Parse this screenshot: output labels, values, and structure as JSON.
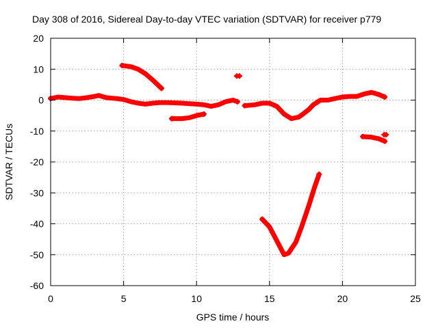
{
  "chart_data": {
    "type": "scatter",
    "title": "Day 308 of 2016, Sidereal Day-to-day VTEC variation (SDTVAR) for receiver p779",
    "xlabel": "GPS time / hours",
    "ylabel": "SDTVAR / TECUs",
    "xlim": [
      0,
      25
    ],
    "ylim": [
      -60,
      20
    ],
    "xticks": [
      0,
      5,
      10,
      15,
      20,
      25
    ],
    "yticks": [
      -60,
      -50,
      -40,
      -30,
      -20,
      -10,
      0,
      10,
      20
    ],
    "grid": true,
    "color": "#ff0000",
    "series": [
      {
        "name": "main-band",
        "points": [
          [
            0,
            0.5
          ],
          [
            0.5,
            1
          ],
          [
            1,
            0.8
          ],
          [
            1.5,
            0.6
          ],
          [
            2,
            0.5
          ],
          [
            2.5,
            0.8
          ],
          [
            3,
            1.2
          ],
          [
            3.3,
            1.5
          ],
          [
            3.8,
            0.8
          ],
          [
            4.5,
            0.5
          ],
          [
            5,
            0.2
          ],
          [
            5.5,
            -0.5
          ],
          [
            6,
            -1
          ],
          [
            6.5,
            -1.3
          ],
          [
            7,
            -1
          ],
          [
            7.5,
            -0.8
          ],
          [
            8,
            -0.8
          ],
          [
            9,
            -1
          ],
          [
            10,
            -1.3
          ],
          [
            10.5,
            -1.5
          ],
          [
            11,
            -2
          ],
          [
            11.5,
            -1.5
          ],
          [
            12,
            -0.5
          ],
          [
            12.5,
            0
          ],
          [
            12.8,
            -0.5
          ]
        ]
      },
      {
        "name": "arc-5-7",
        "points": [
          [
            4.9,
            11.2
          ],
          [
            5.5,
            10.8
          ],
          [
            6,
            10
          ],
          [
            6.5,
            8.5
          ],
          [
            7,
            6.5
          ],
          [
            7.6,
            3.8
          ]
        ]
      },
      {
        "name": "seg-8-10",
        "points": [
          [
            8.3,
            -6
          ],
          [
            9,
            -6
          ],
          [
            9.5,
            -5.7
          ],
          [
            10,
            -5
          ],
          [
            10.5,
            -4.5
          ]
        ]
      },
      {
        "name": "spot-12-8",
        "points": [
          [
            12.75,
            7.8
          ],
          [
            12.95,
            7.8
          ]
        ]
      },
      {
        "name": "dip-14-17",
        "points": [
          [
            13.3,
            -1.8
          ],
          [
            14,
            -1.5
          ],
          [
            14.5,
            -1
          ],
          [
            15,
            -1
          ],
          [
            15.5,
            -2
          ],
          [
            16,
            -4.5
          ],
          [
            16.5,
            -6
          ],
          [
            17,
            -5.5
          ],
          [
            17.3,
            -4.5
          ],
          [
            17.7,
            -3
          ],
          [
            18,
            -1.5
          ],
          [
            18.5,
            0
          ],
          [
            19,
            0
          ],
          [
            19.5,
            0.5
          ],
          [
            20,
            1
          ],
          [
            20.5,
            1.2
          ],
          [
            21,
            1.2
          ],
          [
            21.5,
            2
          ],
          [
            22,
            2.5
          ],
          [
            22.5,
            1.8
          ],
          [
            22.9,
            1
          ]
        ]
      },
      {
        "name": "seg-21-23",
        "points": [
          [
            21.4,
            -11.8
          ],
          [
            22,
            -12
          ],
          [
            22.5,
            -12.5
          ],
          [
            22.9,
            -13.3
          ]
        ]
      },
      {
        "name": "spot-22-9",
        "points": [
          [
            22.85,
            -11.2
          ],
          [
            23,
            -11.2
          ]
        ]
      },
      {
        "name": "v-trough",
        "points": [
          [
            14.5,
            -38.5
          ],
          [
            15,
            -41
          ],
          [
            15.5,
            -45.5
          ],
          [
            16,
            -50
          ],
          [
            16.3,
            -49.5
          ],
          [
            16.8,
            -46
          ],
          [
            17.2,
            -41
          ],
          [
            17.7,
            -34
          ],
          [
            18.1,
            -28
          ],
          [
            18.4,
            -24
          ]
        ]
      }
    ]
  }
}
